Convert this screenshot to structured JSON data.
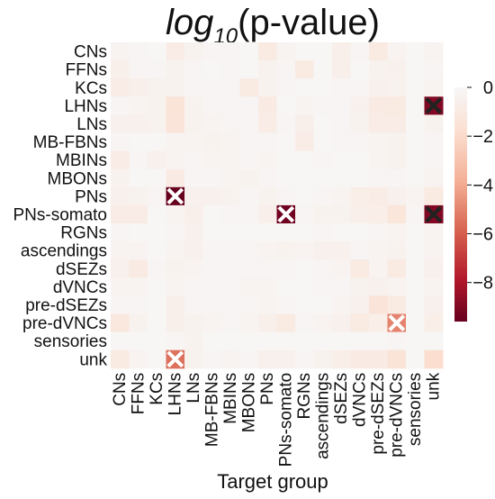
{
  "chart_data": {
    "type": "heatmap",
    "title_main": "log",
    "title_sub": "10",
    "title_rest": "(p-value)",
    "xlabel": "Target group",
    "ylabel": "",
    "rows": [
      "CNs",
      "FFNs",
      "KCs",
      "LHNs",
      "LNs",
      "MB-FBNs",
      "MBINs",
      "MBONs",
      "PNs",
      "PNs-somato",
      "RGNs",
      "ascendings",
      "dSEZs",
      "dVNCs",
      "pre-dSEZs",
      "pre-dVNCs",
      "sensories",
      "unk"
    ],
    "cols": [
      "CNs",
      "FFNs",
      "KCs",
      "LHNs",
      "LNs",
      "MB-FBNs",
      "MBINs",
      "MBONs",
      "PNs",
      "PNs-somato",
      "RGNs",
      "ascendings",
      "dSEZs",
      "dVNCs",
      "pre-dSEZs",
      "pre-dVNCs",
      "sensories",
      "unk"
    ],
    "values": [
      [
        -0.3,
        -0.2,
        -0.1,
        -0.8,
        -0.4,
        -0.2,
        -0.2,
        -0.1,
        -1.0,
        -0.3,
        -0.1,
        -0.1,
        -0.6,
        -0.2,
        -1.0,
        -0.3,
        -0.1,
        -0.3
      ],
      [
        -0.6,
        -0.2,
        -0.2,
        -0.4,
        -0.2,
        -0.1,
        -0.2,
        -0.1,
        -0.4,
        -0.2,
        -1.0,
        -0.1,
        -0.6,
        -0.1,
        -0.4,
        -0.5,
        -0.1,
        -0.2
      ],
      [
        -0.8,
        -0.6,
        -0.4,
        -0.4,
        -0.2,
        -0.2,
        -0.2,
        -1.0,
        -0.4,
        -0.2,
        -0.1,
        -0.1,
        -0.2,
        -0.2,
        -0.5,
        -0.4,
        -0.1,
        -0.3
      ],
      [
        -0.2,
        -0.3,
        -0.4,
        -1.5,
        -0.4,
        -0.2,
        -0.2,
        -0.2,
        -0.9,
        -0.1,
        -0.3,
        -0.2,
        -0.2,
        -0.5,
        -0.9,
        -1.0,
        -0.1,
        -9.0
      ],
      [
        -0.5,
        -0.5,
        -0.4,
        -1.4,
        -0.4,
        -0.3,
        -0.2,
        -0.2,
        -0.8,
        -0.2,
        -0.6,
        -0.1,
        -0.2,
        -0.4,
        -0.8,
        -0.8,
        -0.1,
        -0.4
      ],
      [
        -0.2,
        -0.1,
        -0.1,
        -0.3,
        -0.3,
        -0.4,
        -0.3,
        -0.2,
        -0.2,
        -0.1,
        -0.8,
        -0.1,
        -0.2,
        -0.2,
        -0.3,
        -0.4,
        -0.1,
        -0.2
      ],
      [
        -0.8,
        -0.2,
        -0.5,
        -0.3,
        -0.2,
        -0.3,
        -0.3,
        -0.2,
        -0.3,
        -0.1,
        -0.1,
        -0.2,
        -0.1,
        -0.1,
        -0.3,
        -0.4,
        -0.1,
        -0.2
      ],
      [
        -0.4,
        -0.1,
        -0.1,
        -0.9,
        -0.2,
        -0.2,
        -0.3,
        -0.4,
        -0.2,
        -0.1,
        -0.1,
        -0.1,
        -0.1,
        -0.1,
        -0.2,
        -0.2,
        -0.1,
        -0.3
      ],
      [
        -0.5,
        -0.4,
        -0.2,
        -9.6,
        -0.5,
        -0.5,
        -0.4,
        -0.2,
        -0.4,
        -0.2,
        -0.1,
        -0.2,
        -0.3,
        -0.7,
        -0.8,
        -0.5,
        -0.3,
        -1.0
      ],
      [
        -0.8,
        -0.8,
        -0.1,
        -0.3,
        -0.6,
        -0.1,
        -0.2,
        -0.2,
        -0.6,
        -9.4,
        -0.2,
        -0.4,
        -0.4,
        -0.6,
        -0.7,
        -1.3,
        -0.2,
        -9.0
      ],
      [
        -0.2,
        -0.1,
        -0.1,
        -0.2,
        -0.5,
        -0.1,
        -0.1,
        -0.1,
        -0.1,
        -0.1,
        -0.1,
        -0.2,
        -0.1,
        -0.1,
        -0.2,
        -0.3,
        -0.1,
        -0.3
      ],
      [
        -0.3,
        -0.3,
        -0.1,
        -0.3,
        -0.5,
        -0.2,
        -0.2,
        -0.2,
        -0.3,
        -0.4,
        -0.3,
        -0.5,
        -0.5,
        -0.2,
        -0.3,
        -0.4,
        -0.1,
        -0.3
      ],
      [
        -0.5,
        -0.9,
        -0.2,
        -0.4,
        -0.3,
        -0.2,
        -0.2,
        -0.2,
        -0.2,
        -0.2,
        -0.1,
        -0.2,
        -0.3,
        -1.0,
        -0.3,
        -1.0,
        -0.1,
        -0.5
      ],
      [
        -0.3,
        -0.3,
        -0.1,
        -0.3,
        -0.2,
        -0.2,
        -0.2,
        -0.3,
        -0.3,
        -0.1,
        -0.1,
        -0.2,
        -0.2,
        -0.4,
        -0.5,
        -0.3,
        -0.1,
        -0.3
      ],
      [
        -0.2,
        -0.2,
        -0.1,
        -0.6,
        -0.2,
        -0.2,
        -0.2,
        -0.2,
        -0.3,
        -0.2,
        -0.1,
        -0.1,
        -0.3,
        -0.5,
        -1.4,
        -1.0,
        -0.1,
        -0.5
      ],
      [
        -1.2,
        -0.4,
        -0.1,
        -0.6,
        -0.4,
        -0.3,
        -0.2,
        -0.3,
        -0.6,
        -1.0,
        -0.2,
        -0.3,
        -0.5,
        -1.0,
        -0.7,
        -5.0,
        -0.1,
        -0.7
      ],
      [
        -0.1,
        -0.1,
        -0.1,
        -0.2,
        -0.4,
        -0.1,
        -0.1,
        -0.1,
        -0.1,
        -0.1,
        -0.1,
        -0.1,
        -0.1,
        -0.1,
        -0.1,
        -0.2,
        -0.1,
        -0.1
      ],
      [
        -1.0,
        -0.3,
        -0.1,
        -5.5,
        -0.4,
        -0.2,
        -0.3,
        -0.2,
        -0.5,
        -0.5,
        -0.2,
        -0.4,
        -0.7,
        -0.9,
        -0.9,
        -1.5,
        -0.1,
        -1.8
      ]
    ],
    "markers": [
      {
        "row": 3,
        "col": 17,
        "color": "#222222"
      },
      {
        "row": 8,
        "col": 3,
        "color": "#ffffff"
      },
      {
        "row": 9,
        "col": 9,
        "color": "#ffffff"
      },
      {
        "row": 9,
        "col": 17,
        "color": "#222222"
      },
      {
        "row": 15,
        "col": 15,
        "color": "#ffffff"
      },
      {
        "row": 17,
        "col": 3,
        "color": "#ffffff"
      }
    ],
    "colorbar": {
      "range": [
        -9.6,
        0
      ],
      "ticks": [
        "0",
        "−2",
        "−4",
        "−6",
        "−8"
      ],
      "tick_values": [
        0,
        -2,
        -4,
        -6,
        -8
      ]
    },
    "colormap": "RdBu (low=dark red, 0=near white)"
  }
}
